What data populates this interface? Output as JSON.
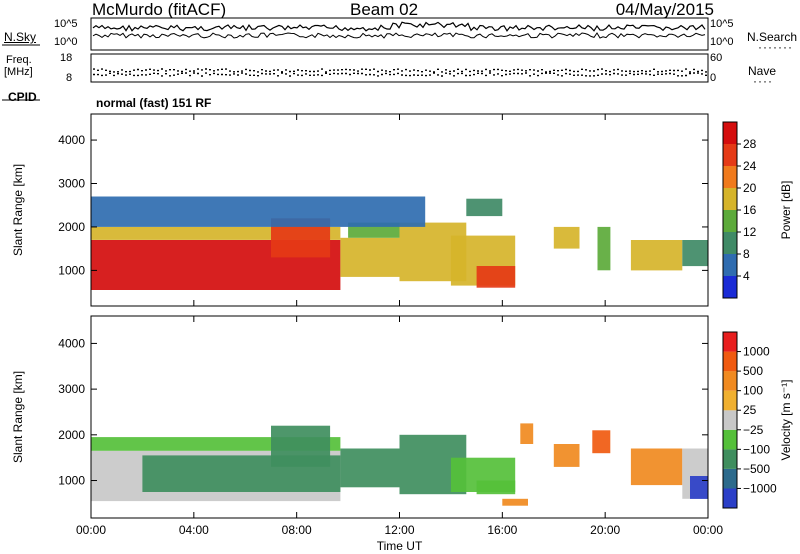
{
  "header": {
    "station": "McMurdo (fitACF)",
    "beam": "Beam 02",
    "date": "04/May/2015"
  },
  "top_panels": {
    "nsky_label": "N.Sky",
    "nsearch_label": "N.Search",
    "nsky_ticks": [
      "10^5",
      "10^0"
    ],
    "nsearch_ticks": [
      "10^5",
      "10^0"
    ],
    "freq_label_line1": "Freq.",
    "freq_label_line2": "[MHz]",
    "freq_ticks": [
      "18",
      "8"
    ],
    "nave_label": "Nave",
    "nave_ticks": [
      "60",
      "0"
    ],
    "cpid_label": "CPID",
    "cpid_text": "normal (fast) 151 RF"
  },
  "chart_data": [
    {
      "type": "heatmap",
      "panel": "power",
      "ylabel": "Slant Range [km]",
      "yticks": [
        1000,
        2000,
        3000,
        4000
      ],
      "ylim": [
        180,
        4600
      ],
      "xlim": [
        0,
        24
      ],
      "xticks": [
        "00:00",
        "04:00",
        "08:00",
        "12:00",
        "16:00",
        "20:00",
        "00:00"
      ],
      "xlabel": "Time UT",
      "colorbar": {
        "label": "Power [dB]",
        "ticks": [
          "4",
          "8",
          "12",
          "16",
          "20",
          "24",
          "28"
        ],
        "colors": [
          "#1a2bd6",
          "#2f6cb0",
          "#3f8a66",
          "#5caa3a",
          "#d6b42a",
          "#f07a1c",
          "#e53a16",
          "#d40d0d"
        ]
      },
      "echo_regions": [
        {
          "t0": 0.0,
          "t1": 9.7,
          "r0": 550,
          "r1": 1700,
          "level": 7
        },
        {
          "t0": 0.0,
          "t1": 9.7,
          "r0": 1700,
          "r1": 2000,
          "level": 4
        },
        {
          "t0": 7.0,
          "t1": 9.3,
          "r0": 1300,
          "r1": 2200,
          "level": 6
        },
        {
          "t0": 9.7,
          "t1": 12.0,
          "r0": 850,
          "r1": 1750,
          "level": 4
        },
        {
          "t0": 10.0,
          "t1": 12.0,
          "r0": 1750,
          "r1": 2100,
          "level": 3
        },
        {
          "t0": 12.0,
          "t1": 14.6,
          "r0": 750,
          "r1": 2100,
          "level": 4
        },
        {
          "t0": 14.0,
          "t1": 16.5,
          "r0": 650,
          "r1": 1800,
          "level": 4
        },
        {
          "t0": 15.0,
          "t1": 16.5,
          "r0": 600,
          "r1": 1100,
          "level": 6
        },
        {
          "t0": 14.6,
          "t1": 16.0,
          "r0": 2250,
          "r1": 2650,
          "level": 2
        },
        {
          "t0": 0.0,
          "t1": 13.0,
          "r0": 2000,
          "r1": 2700,
          "level": 1
        },
        {
          "t0": 18.0,
          "t1": 19.0,
          "r0": 1500,
          "r1": 2000,
          "level": 4
        },
        {
          "t0": 19.7,
          "t1": 20.2,
          "r0": 1000,
          "r1": 2000,
          "level": 3
        },
        {
          "t0": 21.0,
          "t1": 23.0,
          "r0": 1000,
          "r1": 1700,
          "level": 4
        },
        {
          "t0": 23.0,
          "t1": 24.0,
          "r0": 1100,
          "r1": 1700,
          "level": 2
        }
      ]
    },
    {
      "type": "heatmap",
      "panel": "velocity",
      "ylabel": "Slant Range [km]",
      "yticks": [
        1000,
        2000,
        3000,
        4000
      ],
      "ylim": [
        180,
        4600
      ],
      "xlim": [
        0,
        24
      ],
      "xticks": [
        "00:00",
        "04:00",
        "08:00",
        "12:00",
        "16:00",
        "20:00",
        "00:00"
      ],
      "xlabel": "Time UT",
      "colorbar": {
        "label": "Velocity [m s⁻¹]",
        "ticks": [
          "1000",
          "500",
          "100",
          "25",
          "−25",
          "−100",
          "−500",
          "−1000"
        ],
        "colors": [
          "#2b3fc8",
          "#2c6a8c",
          "#3f8e5e",
          "#55c03a",
          "#c8c8c8",
          "#f0b030",
          "#f08a20",
          "#f05a10",
          "#e81e1e"
        ]
      },
      "echo_regions": [
        {
          "t0": 0.0,
          "t1": 9.7,
          "r0": 550,
          "r1": 1650,
          "level": 4
        },
        {
          "t0": 2.0,
          "t1": 9.7,
          "r0": 750,
          "r1": 1550,
          "level": 2
        },
        {
          "t0": 0.0,
          "t1": 9.7,
          "r0": 1650,
          "r1": 1950,
          "level": 3
        },
        {
          "t0": 7.0,
          "t1": 9.3,
          "r0": 1300,
          "r1": 2200,
          "level": 2
        },
        {
          "t0": 9.7,
          "t1": 12.0,
          "r0": 850,
          "r1": 1700,
          "level": 2
        },
        {
          "t0": 12.0,
          "t1": 14.6,
          "r0": 700,
          "r1": 2000,
          "level": 2
        },
        {
          "t0": 14.0,
          "t1": 16.5,
          "r0": 750,
          "r1": 1500,
          "level": 3
        },
        {
          "t0": 15.0,
          "t1": 16.5,
          "r0": 700,
          "r1": 1000,
          "level": 3
        },
        {
          "t0": 16.0,
          "t1": 17.0,
          "r0": 450,
          "r1": 600,
          "level": 6
        },
        {
          "t0": 16.7,
          "t1": 17.2,
          "r0": 1800,
          "r1": 2250,
          "level": 6
        },
        {
          "t0": 18.0,
          "t1": 19.0,
          "r0": 1300,
          "r1": 1800,
          "level": 6
        },
        {
          "t0": 19.5,
          "t1": 20.2,
          "r0": 1600,
          "r1": 2100,
          "level": 7
        },
        {
          "t0": 21.0,
          "t1": 23.0,
          "r0": 900,
          "r1": 1700,
          "level": 6
        },
        {
          "t0": 23.0,
          "t1": 24.0,
          "r0": 600,
          "r1": 1700,
          "level": 4
        },
        {
          "t0": 23.3,
          "t1": 24.0,
          "r0": 600,
          "r1": 1100,
          "level": 0
        }
      ]
    }
  ]
}
